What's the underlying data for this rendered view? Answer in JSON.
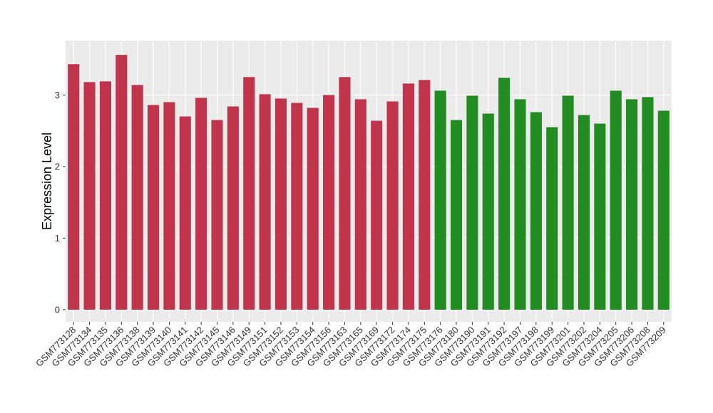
{
  "chart_data": {
    "type": "bar",
    "title": "",
    "xlabel": "",
    "ylabel": "Expression Level",
    "ylim": [
      -0.17,
      3.76
    ],
    "yticks": [
      0,
      1,
      2,
      3
    ],
    "grid": true,
    "legend": "none",
    "colors": {
      "panel_bg": "#EBEBEB",
      "grid_major": "#FFFFFF",
      "grid_minor": "#F5F5F5",
      "group1": "#C0344C",
      "group2": "#228B22"
    },
    "categories": [
      "GSM773128",
      "GSM773134",
      "GSM773135",
      "GSM773136",
      "GSM773138",
      "GSM773139",
      "GSM773140",
      "GSM773141",
      "GSM773142",
      "GSM773145",
      "GSM773146",
      "GSM773149",
      "GSM773151",
      "GSM773152",
      "GSM773153",
      "GSM773154",
      "GSM773156",
      "GSM773163",
      "GSM773165",
      "GSM773169",
      "GSM773172",
      "GSM773174",
      "GSM773175",
      "GSM773176",
      "GSM773180",
      "GSM773190",
      "GSM773191",
      "GSM773192",
      "GSM773197",
      "GSM773198",
      "GSM773199",
      "GSM773201",
      "GSM773202",
      "GSM773204",
      "GSM773205",
      "GSM773206",
      "GSM773208",
      "GSM773209"
    ],
    "values": [
      3.43,
      3.18,
      3.19,
      3.56,
      3.14,
      2.86,
      2.9,
      2.7,
      2.96,
      2.65,
      2.84,
      3.25,
      3.01,
      2.95,
      2.89,
      2.82,
      3.0,
      3.25,
      2.94,
      2.64,
      2.91,
      3.16,
      3.21,
      3.06,
      2.65,
      2.99,
      2.74,
      3.24,
      2.94,
      2.76,
      2.55,
      2.99,
      2.72,
      2.6,
      3.06,
      2.94,
      2.97,
      2.78
    ],
    "bar_colors": [
      "#C0344C",
      "#C0344C",
      "#C0344C",
      "#C0344C",
      "#C0344C",
      "#C0344C",
      "#C0344C",
      "#C0344C",
      "#C0344C",
      "#C0344C",
      "#C0344C",
      "#C0344C",
      "#C0344C",
      "#C0344C",
      "#C0344C",
      "#C0344C",
      "#C0344C",
      "#C0344C",
      "#C0344C",
      "#C0344C",
      "#C0344C",
      "#C0344C",
      "#C0344C",
      "#228B22",
      "#228B22",
      "#228B22",
      "#228B22",
      "#228B22",
      "#228B22",
      "#228B22",
      "#228B22",
      "#228B22",
      "#228B22",
      "#228B22",
      "#228B22",
      "#228B22",
      "#228B22",
      "#228B22"
    ]
  }
}
